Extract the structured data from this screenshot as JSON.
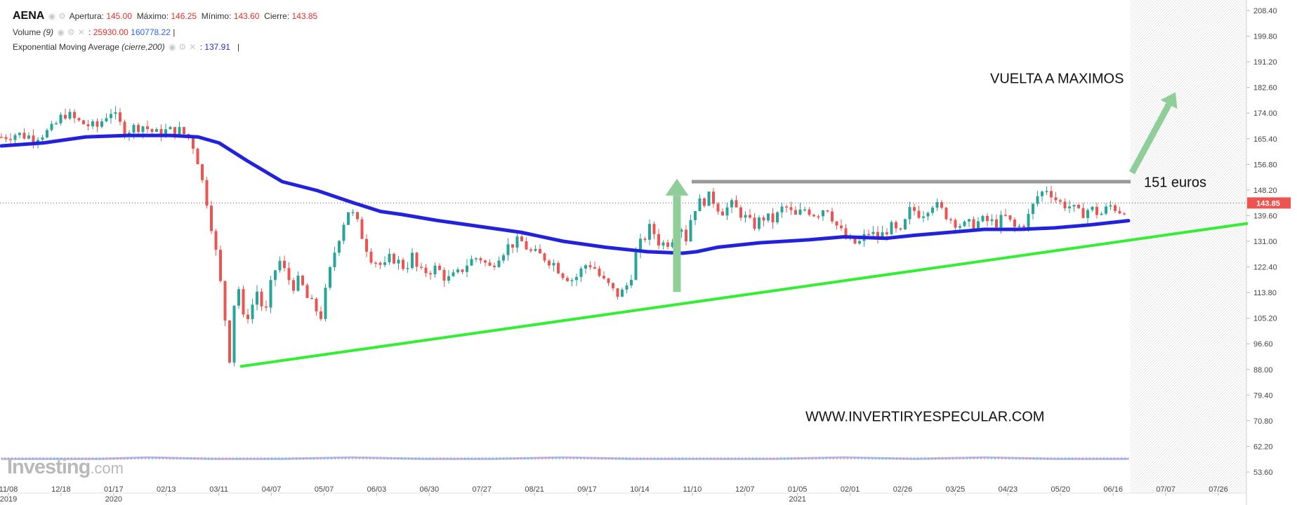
{
  "header": {
    "symbol": "AENA",
    "apertura_label": "Apertura:",
    "apertura": "145.00",
    "maximo_label": "Máximo:",
    "maximo": "146.25",
    "minimo_label": "Mínimo:",
    "minimo": "143.60",
    "cierre_label": "Cierre:",
    "cierre": "143.85",
    "volume_label": "Volume",
    "volume_param": "(9)",
    "volume_value": "25930.00",
    "volume_ma": "160778.22",
    "ema_label": "Exponential Moving Average",
    "ema_param": "(cierre,200)",
    "ema_value": "137.91"
  },
  "logo": {
    "text": "Investing",
    "domain": ".com"
  },
  "colors": {
    "up": "#26a69a",
    "down": "#ef5350",
    "ema": "#2222dd",
    "support": "#33ee33",
    "resistance": "#999999",
    "arrow": "#8fce98",
    "price_tag": "#ef5350"
  },
  "chart_data": {
    "type": "candlestick",
    "title": "AENA",
    "y_ticks": [
      "208.40",
      "199.80",
      "191.20",
      "182.60",
      "174.00",
      "165.40",
      "156.80",
      "148.20",
      "139.60",
      "131.00",
      "122.40",
      "113.80",
      "105.20",
      "96.60",
      "88.00",
      "79.40",
      "70.80",
      "62.20",
      "53.60"
    ],
    "ylim": [
      53.6,
      208.4
    ],
    "x_ticks": [
      {
        "label": "11/08",
        "year": "2019"
      },
      {
        "label": "12/18",
        "year": ""
      },
      {
        "label": "01/17",
        "year": "2020"
      },
      {
        "label": "02/13",
        "year": ""
      },
      {
        "label": "03/11",
        "year": ""
      },
      {
        "label": "04/07",
        "year": ""
      },
      {
        "label": "05/07",
        "year": ""
      },
      {
        "label": "06/03",
        "year": ""
      },
      {
        "label": "06/30",
        "year": ""
      },
      {
        "label": "07/27",
        "year": ""
      },
      {
        "label": "08/21",
        "year": ""
      },
      {
        "label": "09/17",
        "year": ""
      },
      {
        "label": "10/14",
        "year": ""
      },
      {
        "label": "11/10",
        "year": ""
      },
      {
        "label": "12/07",
        "year": ""
      },
      {
        "label": "01/05",
        "year": "2021"
      },
      {
        "label": "02/01",
        "year": ""
      },
      {
        "label": "02/26",
        "year": ""
      },
      {
        "label": "03/25",
        "year": ""
      },
      {
        "label": "04/23",
        "year": ""
      },
      {
        "label": "05/20",
        "year": ""
      },
      {
        "label": "06/16",
        "year": ""
      },
      {
        "label": "07/07",
        "year": ""
      },
      {
        "label": "07/26",
        "year": ""
      }
    ],
    "last_price": "143.85",
    "price_path": [
      [
        0,
        166
      ],
      [
        20,
        167
      ],
      [
        45,
        166
      ],
      [
        70,
        168
      ],
      [
        90,
        174
      ],
      [
        110,
        171
      ],
      [
        135,
        169
      ],
      [
        155,
        175
      ],
      [
        175,
        168
      ],
      [
        200,
        170
      ],
      [
        220,
        167
      ],
      [
        235,
        168
      ],
      [
        255,
        168
      ],
      [
        270,
        165
      ],
      [
        278,
        160
      ],
      [
        285,
        152
      ],
      [
        295,
        142
      ],
      [
        305,
        128
      ],
      [
        315,
        112
      ],
      [
        325,
        92
      ],
      [
        335,
        120
      ],
      [
        345,
        104
      ],
      [
        355,
        108
      ],
      [
        365,
        115
      ],
      [
        375,
        105
      ],
      [
        385,
        118
      ],
      [
        395,
        125
      ],
      [
        405,
        120
      ],
      [
        415,
        116
      ],
      [
        425,
        118
      ],
      [
        435,
        112
      ],
      [
        445,
        109
      ],
      [
        455,
        106
      ],
      [
        465,
        118
      ],
      [
        475,
        128
      ],
      [
        485,
        136
      ],
      [
        495,
        142
      ],
      [
        505,
        138
      ],
      [
        515,
        132
      ],
      [
        525,
        126
      ],
      [
        535,
        124
      ],
      [
        545,
        122
      ],
      [
        555,
        126
      ],
      [
        565,
        124
      ],
      [
        575,
        122
      ],
      [
        585,
        126
      ],
      [
        595,
        120
      ],
      [
        605,
        121
      ],
      [
        620,
        122
      ],
      [
        635,
        118
      ],
      [
        650,
        120
      ],
      [
        665,
        124
      ],
      [
        680,
        126
      ],
      [
        695,
        122
      ],
      [
        710,
        127
      ],
      [
        725,
        130
      ],
      [
        740,
        131
      ],
      [
        755,
        127
      ],
      [
        770,
        126
      ],
      [
        785,
        124
      ],
      [
        800,
        120
      ],
      [
        815,
        118
      ],
      [
        825,
        121
      ],
      [
        835,
        124
      ],
      [
        845,
        122
      ],
      [
        855,
        118
      ],
      [
        865,
        116
      ],
      [
        875,
        113
      ],
      [
        885,
        114
      ],
      [
        895,
        118
      ],
      [
        905,
        128
      ],
      [
        915,
        132
      ],
      [
        925,
        136
      ],
      [
        935,
        131
      ],
      [
        945,
        130
      ],
      [
        955,
        132
      ],
      [
        965,
        138
      ],
      [
        975,
        132
      ],
      [
        985,
        142
      ],
      [
        995,
        144
      ],
      [
        1010,
        146
      ],
      [
        1025,
        141
      ],
      [
        1040,
        143
      ],
      [
        1055,
        140
      ],
      [
        1070,
        136
      ],
      [
        1085,
        139
      ],
      [
        1100,
        138
      ],
      [
        1115,
        143
      ],
      [
        1130,
        139
      ],
      [
        1145,
        142
      ],
      [
        1160,
        140
      ],
      [
        1175,
        143
      ],
      [
        1190,
        136
      ],
      [
        1205,
        131
      ],
      [
        1220,
        130
      ],
      [
        1235,
        134
      ],
      [
        1250,
        132
      ],
      [
        1265,
        136
      ],
      [
        1280,
        133
      ],
      [
        1295,
        142
      ],
      [
        1310,
        140
      ],
      [
        1325,
        144
      ],
      [
        1340,
        141
      ],
      [
        1355,
        138
      ],
      [
        1370,
        136
      ],
      [
        1385,
        137
      ],
      [
        1400,
        138
      ],
      [
        1415,
        137
      ],
      [
        1430,
        139
      ],
      [
        1445,
        135
      ],
      [
        1460,
        138
      ],
      [
        1475,
        146
      ],
      [
        1490,
        149
      ],
      [
        1505,
        144
      ],
      [
        1520,
        143
      ],
      [
        1535,
        140
      ],
      [
        1550,
        142
      ],
      [
        1565,
        140
      ],
      [
        1580,
        143
      ],
      [
        1595,
        141
      ],
      [
        1605,
        144
      ]
    ],
    "ema_200": [
      [
        0,
        163
      ],
      [
        60,
        164
      ],
      [
        120,
        166
      ],
      [
        180,
        166.5
      ],
      [
        240,
        166.5
      ],
      [
        280,
        166
      ],
      [
        310,
        164
      ],
      [
        350,
        158
      ],
      [
        400,
        151
      ],
      [
        450,
        148
      ],
      [
        500,
        144
      ],
      [
        540,
        141
      ],
      [
        570,
        140
      ],
      [
        620,
        138
      ],
      [
        680,
        136
      ],
      [
        740,
        134
      ],
      [
        800,
        131
      ],
      [
        860,
        129
      ],
      [
        920,
        127.5
      ],
      [
        970,
        127
      ],
      [
        990,
        127.5
      ],
      [
        1020,
        129
      ],
      [
        1080,
        130.5
      ],
      [
        1150,
        131.5
      ],
      [
        1200,
        132.5
      ],
      [
        1260,
        132
      ],
      [
        1300,
        133
      ],
      [
        1350,
        134
      ],
      [
        1400,
        135
      ],
      [
        1450,
        135
      ],
      [
        1500,
        135.5
      ],
      [
        1550,
        136.5
      ],
      [
        1605,
        137.91
      ]
    ],
    "support_line": {
      "x": [
        340,
        1775
      ],
      "y": [
        89,
        137
      ]
    },
    "resistance": {
      "value": 151
    },
    "volume": [
      [
        0,
        58
      ],
      [
        60,
        58
      ],
      [
        140,
        58
      ],
      [
        210,
        58.5
      ],
      [
        300,
        58
      ],
      [
        400,
        58
      ],
      [
        500,
        58.5
      ],
      [
        600,
        58
      ],
      [
        700,
        58
      ],
      [
        800,
        58.5
      ],
      [
        900,
        58
      ],
      [
        1000,
        58
      ],
      [
        1100,
        58
      ],
      [
        1200,
        58.5
      ],
      [
        1300,
        58
      ],
      [
        1400,
        58.5
      ],
      [
        1500,
        58
      ],
      [
        1605,
        58
      ]
    ],
    "annotations": {
      "target": "VUELTA A MAXIMOS",
      "resistance_label": "151 euros",
      "watermark": "WWW.INVERTIRYESPECULAR.COM"
    },
    "grid": false,
    "y_axis_position": "right"
  }
}
